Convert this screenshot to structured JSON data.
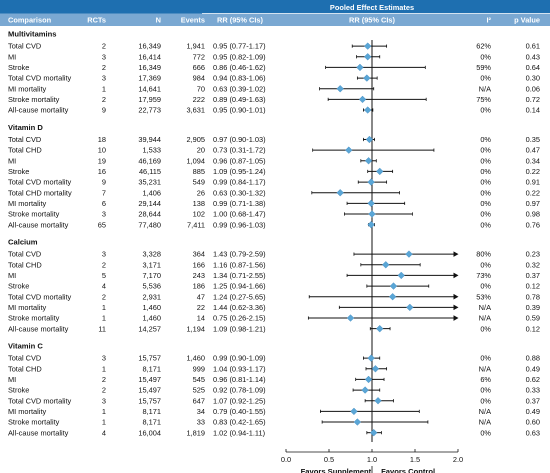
{
  "colors": {
    "header": "#1e6fb0",
    "subheader": "#7aa8d2",
    "diamond": "#5aa6d6",
    "rule": "#1e6fb0"
  },
  "header": {
    "title": "Pooled Effect Estimates",
    "columns": [
      "Comparison",
      "RCTs",
      "N",
      "Events",
      "RR (95% CIs)",
      "RR (95% CIs)",
      "I²",
      "p Value"
    ]
  },
  "chart_data": {
    "type": "forest",
    "effect_measure": "RR",
    "x_ticks": [
      0.0,
      0.5,
      1.0,
      1.5,
      2.0
    ],
    "xlim": [
      0.0,
      2.0
    ],
    "reference_line": 1.0,
    "xlabel_left": "Favors Supplement",
    "xlabel_right": "Favors Control",
    "groups": [
      {
        "name": "Multivitamins",
        "rows": [
          {
            "label": "Total CVD",
            "rcts": "2",
            "n": "16,349",
            "events": "1,941",
            "rr_text": "0.95 (0.77-1.17)",
            "rr": 0.95,
            "lo": 0.77,
            "hi": 1.17,
            "i2": "62%",
            "p": "0.61"
          },
          {
            "label": "MI",
            "rcts": "3",
            "n": "16,414",
            "events": "772",
            "rr_text": "0.95 (0.82-1.09)",
            "rr": 0.95,
            "lo": 0.82,
            "hi": 1.09,
            "i2": "0%",
            "p": "0.43"
          },
          {
            "label": "Stroke",
            "rcts": "2",
            "n": "16,349",
            "events": "666",
            "rr_text": "0.86 (0.46-1.62)",
            "rr": 0.86,
            "lo": 0.46,
            "hi": 1.62,
            "i2": "59%",
            "p": "0.64"
          },
          {
            "label": "Total CVD mortality",
            "rcts": "3",
            "n": "17,369",
            "events": "984",
            "rr_text": "0.94 (0.83-1.06)",
            "rr": 0.94,
            "lo": 0.83,
            "hi": 1.06,
            "i2": "0%",
            "p": "0.30"
          },
          {
            "label": "MI mortality",
            "rcts": "1",
            "n": "14,641",
            "events": "70",
            "rr_text": "0.63 (0.39-1.02)",
            "rr": 0.63,
            "lo": 0.39,
            "hi": 1.02,
            "i2": "N/A",
            "p": "0.06"
          },
          {
            "label": "Stroke mortality",
            "rcts": "2",
            "n": "17,959",
            "events": "222",
            "rr_text": "0.89 (0.49-1.63)",
            "rr": 0.89,
            "lo": 0.49,
            "hi": 1.63,
            "i2": "75%",
            "p": "0.72"
          },
          {
            "label": "All-cause mortality",
            "rcts": "9",
            "n": "22,773",
            "events": "3,631",
            "rr_text": "0.95 (0.90-1.01)",
            "rr": 0.95,
            "lo": 0.9,
            "hi": 1.01,
            "i2": "0%",
            "p": "0.14"
          }
        ]
      },
      {
        "name": "Vitamin D",
        "rows": [
          {
            "label": "Total CVD",
            "rcts": "18",
            "n": "39,944",
            "events": "2,905",
            "rr_text": "0.97 (0.90-1.03)",
            "rr": 0.97,
            "lo": 0.9,
            "hi": 1.03,
            "i2": "0%",
            "p": "0.35"
          },
          {
            "label": "Total CHD",
            "rcts": "10",
            "n": "1,533",
            "events": "20",
            "rr_text": "0.73 (0.31-1.72)",
            "rr": 0.73,
            "lo": 0.31,
            "hi": 1.72,
            "i2": "0%",
            "p": "0.47"
          },
          {
            "label": "MI",
            "rcts": "19",
            "n": "46,169",
            "events": "1,094",
            "rr_text": "0.96 (0.87-1.05)",
            "rr": 0.96,
            "lo": 0.87,
            "hi": 1.05,
            "i2": "0%",
            "p": "0.34"
          },
          {
            "label": "Stroke",
            "rcts": "16",
            "n": "46,115",
            "events": "885",
            "rr_text": "1.09 (0.95-1.24)",
            "rr": 1.09,
            "lo": 0.95,
            "hi": 1.24,
            "i2": "0%",
            "p": "0.22"
          },
          {
            "label": "Total CVD mortality",
            "rcts": "9",
            "n": "35,231",
            "events": "549",
            "rr_text": "0.99 (0.84-1.17)",
            "rr": 0.99,
            "lo": 0.84,
            "hi": 1.17,
            "i2": "0%",
            "p": "0.91"
          },
          {
            "label": "Total CHD mortality",
            "rcts": "7",
            "n": "1,406",
            "events": "26",
            "rr_text": "0.63 (0.30-1.32)",
            "rr": 0.63,
            "lo": 0.3,
            "hi": 1.32,
            "i2": "0%",
            "p": "0.22"
          },
          {
            "label": "MI mortality",
            "rcts": "6",
            "n": "29,144",
            "events": "138",
            "rr_text": "0.99 (0.71-1.38)",
            "rr": 0.99,
            "lo": 0.71,
            "hi": 1.38,
            "i2": "0%",
            "p": "0.97"
          },
          {
            "label": "Stroke mortality",
            "rcts": "3",
            "n": "28,644",
            "events": "102",
            "rr_text": "1.00 (0.68-1.47)",
            "rr": 1.0,
            "lo": 0.68,
            "hi": 1.47,
            "i2": "0%",
            "p": "0.98"
          },
          {
            "label": "All-cause mortality",
            "rcts": "65",
            "n": "77,480",
            "events": "7,411",
            "rr_text": "0.99 (0.96-1.03)",
            "rr": 0.99,
            "lo": 0.96,
            "hi": 1.03,
            "i2": "0%",
            "p": "0.76"
          }
        ]
      },
      {
        "name": "Calcium",
        "rows": [
          {
            "label": "Total CVD",
            "rcts": "3",
            "n": "3,328",
            "events": "364",
            "rr_text": "1.43 (0.79-2.59)",
            "rr": 1.43,
            "lo": 0.79,
            "hi": 2.59,
            "i2": "80%",
            "p": "0.23"
          },
          {
            "label": "Total CHD",
            "rcts": "2",
            "n": "3,171",
            "events": "166",
            "rr_text": "1.16 (0.87-1.56)",
            "rr": 1.16,
            "lo": 0.87,
            "hi": 1.56,
            "i2": "0%",
            "p": "0.32"
          },
          {
            "label": "MI",
            "rcts": "5",
            "n": "7,170",
            "events": "243",
            "rr_text": "1.34 (0.71-2.55)",
            "rr": 1.34,
            "lo": 0.71,
            "hi": 2.55,
            "i2": "73%",
            "p": "0.37"
          },
          {
            "label": "Stroke",
            "rcts": "4",
            "n": "5,536",
            "events": "186",
            "rr_text": "1.25 (0.94-1.66)",
            "rr": 1.25,
            "lo": 0.94,
            "hi": 1.66,
            "i2": "0%",
            "p": "0.12"
          },
          {
            "label": "Total CVD mortality",
            "rcts": "2",
            "n": "2,931",
            "events": "47",
            "rr_text": "1.24 (0.27-5.65)",
            "rr": 1.24,
            "lo": 0.27,
            "hi": 5.65,
            "i2": "53%",
            "p": "0.78"
          },
          {
            "label": "MI mortality",
            "rcts": "1",
            "n": "1,460",
            "events": "22",
            "rr_text": "1.44 (0.62-3.36)",
            "rr": 1.44,
            "lo": 0.62,
            "hi": 3.36,
            "i2": "N/A",
            "p": "0.39"
          },
          {
            "label": "Stroke mortality",
            "rcts": "1",
            "n": "1,460",
            "events": "14",
            "rr_text": "0.75 (0.26-2.15)",
            "rr": 0.75,
            "lo": 0.26,
            "hi": 2.15,
            "i2": "N/A",
            "p": "0.59"
          },
          {
            "label": "All-cause mortality",
            "rcts": "11",
            "n": "14,257",
            "events": "1,194",
            "rr_text": "1.09 (0.98-1.21)",
            "rr": 1.09,
            "lo": 0.98,
            "hi": 1.21,
            "i2": "0%",
            "p": "0.12"
          }
        ]
      },
      {
        "name": "Vitamin C",
        "rows": [
          {
            "label": "Total CVD",
            "rcts": "3",
            "n": "15,757",
            "events": "1,460",
            "rr_text": "0.99 (0.90-1.09)",
            "rr": 0.99,
            "lo": 0.9,
            "hi": 1.09,
            "i2": "0%",
            "p": "0.88"
          },
          {
            "label": "Total CHD",
            "rcts": "1",
            "n": "8,171",
            "events": "999",
            "rr_text": "1.04 (0.93-1.17)",
            "rr": 1.04,
            "lo": 0.93,
            "hi": 1.17,
            "i2": "N/A",
            "p": "0.49"
          },
          {
            "label": "MI",
            "rcts": "2",
            "n": "15,497",
            "events": "545",
            "rr_text": "0.96 (0.81-1.14)",
            "rr": 0.96,
            "lo": 0.81,
            "hi": 1.14,
            "i2": "6%",
            "p": "0.62"
          },
          {
            "label": "Stroke",
            "rcts": "2",
            "n": "15,497",
            "events": "525",
            "rr_text": "0.92 (0.78-1.09)",
            "rr": 0.92,
            "lo": 0.78,
            "hi": 1.09,
            "i2": "0%",
            "p": "0.33"
          },
          {
            "label": "Total CVD mortality",
            "rcts": "3",
            "n": "15,757",
            "events": "647",
            "rr_text": "1.07 (0.92-1.25)",
            "rr": 1.07,
            "lo": 0.92,
            "hi": 1.25,
            "i2": "0%",
            "p": "0.37"
          },
          {
            "label": "MI mortality",
            "rcts": "1",
            "n": "8,171",
            "events": "34",
            "rr_text": "0.79 (0.40-1.55)",
            "rr": 0.79,
            "lo": 0.4,
            "hi": 1.55,
            "i2": "N/A",
            "p": "0.49"
          },
          {
            "label": "Stroke mortality",
            "rcts": "1",
            "n": "8,171",
            "events": "33",
            "rr_text": "0.83 (0.42-1.65)",
            "rr": 0.83,
            "lo": 0.42,
            "hi": 1.65,
            "i2": "N/A",
            "p": "0.60"
          },
          {
            "label": "All-cause mortality",
            "rcts": "4",
            "n": "16,004",
            "events": "1,819",
            "rr_text": "1.02 (0.94-1.11)",
            "rr": 1.02,
            "lo": 0.94,
            "hi": 1.11,
            "i2": "0%",
            "p": "0.63"
          }
        ]
      }
    ]
  }
}
